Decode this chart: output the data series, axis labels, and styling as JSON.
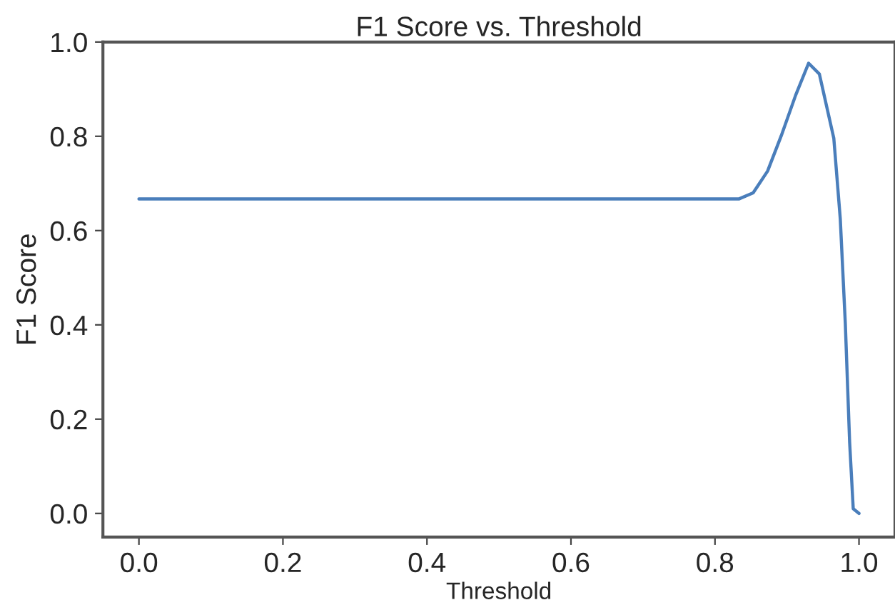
{
  "chart_data": {
    "type": "line",
    "title": "F1 Score vs. Threshold",
    "xlabel": "Threshold",
    "ylabel": "F1 Score",
    "series": [
      {
        "color": "#4a7ebb",
        "x": [
          0.0,
          0.2,
          0.4,
          0.6,
          0.8,
          0.833,
          0.853,
          0.873,
          0.892,
          0.912,
          0.93,
          0.945,
          0.965,
          0.974,
          0.981,
          0.987,
          0.992,
          1.0
        ],
        "values": [
          0.667,
          0.667,
          0.667,
          0.667,
          0.667,
          0.667,
          0.68,
          0.726,
          0.801,
          0.887,
          0.955,
          0.932,
          0.796,
          0.625,
          0.403,
          0.151,
          0.01,
          0.0
        ]
      }
    ],
    "xlim": [
      -0.05,
      1.05
    ],
    "ylim": [
      -0.05,
      1.0
    ],
    "xticks": [
      {
        "value": 0,
        "label": "0.0"
      },
      0.2,
      0.4,
      0.6,
      0.8,
      {
        "value": 1,
        "label": "1.0"
      }
    ],
    "yticks": [
      {
        "value": 0,
        "label": "0.0"
      },
      0.2,
      0.4,
      0.6,
      0.8,
      {
        "value": 1,
        "label": "1.0"
      }
    ],
    "grid": false,
    "marker": "none",
    "line_style": "solid"
  }
}
